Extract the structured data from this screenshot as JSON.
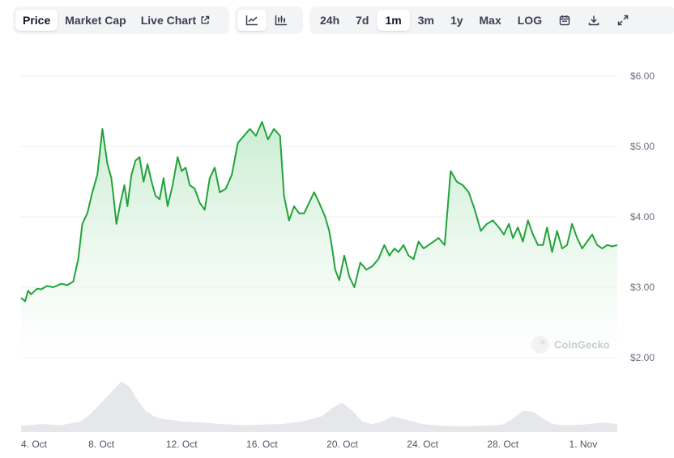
{
  "toolbar": {
    "view_tabs": [
      {
        "label": "Price",
        "active": true
      },
      {
        "label": "Market Cap",
        "active": false
      },
      {
        "label": "Live Chart",
        "active": false,
        "icon": "external-link-icon"
      }
    ],
    "chart_type_buttons": [
      {
        "icon": "line-chart-icon",
        "active": true
      },
      {
        "icon": "candlestick-chart-icon",
        "active": false
      }
    ],
    "range_tabs": [
      {
        "label": "24h",
        "active": false
      },
      {
        "label": "7d",
        "active": false
      },
      {
        "label": "1m",
        "active": true
      },
      {
        "label": "3m",
        "active": false
      },
      {
        "label": "1y",
        "active": false
      },
      {
        "label": "Max",
        "active": false
      },
      {
        "label": "LOG",
        "active": false
      }
    ],
    "action_icons": [
      "calendar-icon",
      "download-icon",
      "expand-icon"
    ]
  },
  "watermark": "CoinGecko",
  "colors": {
    "line": "#22a33a",
    "fill_top": "#c8ecd0",
    "fill_bottom": "#ffffff",
    "volume": "#e5e7eb",
    "grid": "#eeeeee",
    "active_tab_bg": "#ffffff",
    "tab_group_bg": "#f3f4f6"
  },
  "chart_data": {
    "type": "area",
    "y_ticks": [
      "$6.00",
      "$5.00",
      "$4.00",
      "$3.00",
      "$2.00"
    ],
    "y_tick_values": [
      6,
      5,
      4,
      3,
      2
    ],
    "ylim": [
      2,
      6
    ],
    "x_ticks": [
      "4. Oct",
      "8. Oct",
      "12. Oct",
      "16. Oct",
      "20. Oct",
      "24. Oct",
      "28. Oct",
      "1. Nov"
    ],
    "x_tick_days": [
      4,
      8,
      12,
      16,
      20,
      24,
      28,
      32
    ],
    "xlim_days": [
      4,
      33.7
    ],
    "x_unit": "day of October (32 = 1. Nov)",
    "grid": true,
    "series": [
      {
        "x": [
          4.0,
          4.2,
          4.35,
          4.5,
          4.8,
          5.0,
          5.3,
          5.6,
          6.0,
          6.3,
          6.6,
          6.85,
          7.05,
          7.3,
          7.55,
          7.8,
          8.05,
          8.3,
          8.5,
          8.6,
          8.75,
          8.95,
          9.15,
          9.3,
          9.5,
          9.7,
          9.9,
          10.1,
          10.3,
          10.5,
          10.7,
          10.9,
          11.1,
          11.3,
          11.55,
          11.8,
          12.0,
          12.2,
          12.4,
          12.65,
          12.9,
          13.15,
          13.4,
          13.65,
          13.9,
          14.2,
          14.5,
          14.8,
          15.1,
          15.4,
          15.7,
          16.0,
          16.3,
          16.6,
          16.9,
          17.1,
          17.35,
          17.6,
          17.85,
          18.1,
          18.35,
          18.6,
          18.85,
          19.15,
          19.35,
          19.5,
          19.65,
          19.85,
          20.1,
          20.35,
          20.6,
          20.9,
          21.2,
          21.5,
          21.8,
          22.1,
          22.35,
          22.6,
          22.8,
          23.05,
          23.3,
          23.55,
          23.8,
          24.05,
          24.3,
          24.55,
          24.8,
          25.1,
          25.4,
          25.7,
          26.0,
          26.3,
          26.6,
          26.9,
          27.2,
          27.5,
          27.8,
          28.05,
          28.3,
          28.5,
          28.75,
          29.0,
          29.25,
          29.5,
          29.75,
          30.0,
          30.2,
          30.45,
          30.7,
          30.95,
          31.2,
          31.45,
          31.7,
          31.95,
          32.2,
          32.45,
          32.7,
          32.95,
          33.2,
          33.45,
          33.7
        ],
        "values": [
          2.85,
          2.8,
          2.95,
          2.9,
          2.98,
          2.97,
          3.02,
          3.0,
          3.05,
          3.03,
          3.08,
          3.4,
          3.9,
          4.05,
          4.35,
          4.6,
          5.25,
          4.75,
          4.55,
          4.3,
          3.9,
          4.2,
          4.45,
          4.15,
          4.6,
          4.8,
          4.85,
          4.5,
          4.75,
          4.5,
          4.3,
          4.25,
          4.55,
          4.15,
          4.45,
          4.85,
          4.65,
          4.7,
          4.45,
          4.4,
          4.2,
          4.1,
          4.55,
          4.7,
          4.35,
          4.4,
          4.6,
          5.05,
          5.15,
          5.25,
          5.15,
          5.35,
          5.1,
          5.25,
          5.15,
          4.3,
          3.95,
          4.15,
          4.05,
          4.05,
          4.2,
          4.35,
          4.2,
          4.0,
          3.8,
          3.55,
          3.25,
          3.1,
          3.45,
          3.15,
          3.0,
          3.35,
          3.25,
          3.3,
          3.4,
          3.6,
          3.45,
          3.55,
          3.5,
          3.6,
          3.45,
          3.4,
          3.65,
          3.55,
          3.6,
          3.65,
          3.7,
          3.6,
          4.65,
          4.5,
          4.45,
          4.35,
          4.1,
          3.8,
          3.9,
          3.95,
          3.85,
          3.75,
          3.9,
          3.7,
          3.85,
          3.65,
          3.95,
          3.75,
          3.6,
          3.6,
          3.85,
          3.5,
          3.8,
          3.55,
          3.6,
          3.9,
          3.7,
          3.55,
          3.65,
          3.75,
          3.6,
          3.55,
          3.6,
          3.58,
          3.6
        ]
      }
    ],
    "volume": {
      "x": [
        4.0,
        5.0,
        6.0,
        7.0,
        7.5,
        8.0,
        8.5,
        9.0,
        9.4,
        9.8,
        10.2,
        10.6,
        11.0,
        12.0,
        13.0,
        14.0,
        15.0,
        16.0,
        17.0,
        18.0,
        18.5,
        19.0,
        19.5,
        20.0,
        20.5,
        21.0,
        21.5,
        22.0,
        22.5,
        23.0,
        23.5,
        24.0,
        25.0,
        26.0,
        27.0,
        28.0,
        28.5,
        29.0,
        29.5,
        30.0,
        30.5,
        31.0,
        32.0,
        33.0,
        33.7
      ],
      "values": [
        0.12,
        0.15,
        0.13,
        0.2,
        0.35,
        0.55,
        0.75,
        0.95,
        0.85,
        0.6,
        0.4,
        0.3,
        0.25,
        0.2,
        0.18,
        0.15,
        0.13,
        0.14,
        0.15,
        0.2,
        0.25,
        0.3,
        0.45,
        0.55,
        0.4,
        0.2,
        0.15,
        0.2,
        0.3,
        0.25,
        0.2,
        0.15,
        0.12,
        0.11,
        0.12,
        0.14,
        0.25,
        0.4,
        0.38,
        0.25,
        0.15,
        0.13,
        0.14,
        0.18,
        0.15
      ]
    }
  }
}
